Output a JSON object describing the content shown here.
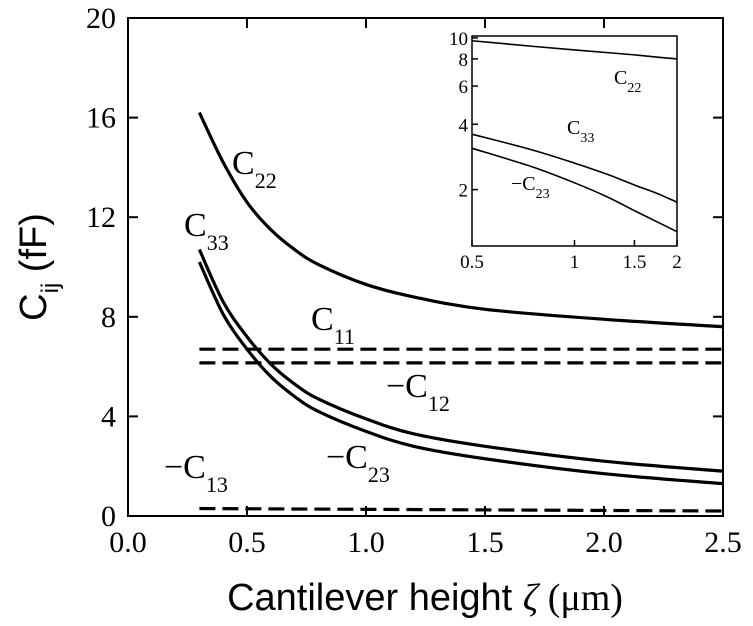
{
  "chart_data": [
    {
      "type": "line",
      "title": "",
      "xlabel_prefix": "Cantilever height ",
      "xlabel_symbol": "ζ",
      "xlabel_unit": " (μm)",
      "ylabel_main": "C",
      "ylabel_sub": "ij",
      "ylabel_unit": " (fF)",
      "xlim": [
        0.0,
        2.5
      ],
      "ylim": [
        0,
        20
      ],
      "xticks": [
        "0.0",
        "0.5",
        "1.0",
        "1.5",
        "2.0",
        "2.5"
      ],
      "yticks": [
        "0",
        "4",
        "8",
        "12",
        "16",
        "20"
      ],
      "grid": false,
      "series": [
        {
          "name": "C22",
          "label_main": "C",
          "label_sub": "22",
          "style": "solid",
          "x": [
            0.3,
            0.4,
            0.5,
            0.6,
            0.7,
            0.8,
            1.0,
            1.2,
            1.5,
            2.0,
            2.5
          ],
          "y": [
            16.2,
            14.2,
            12.6,
            11.5,
            10.7,
            10.1,
            9.3,
            8.8,
            8.3,
            7.9,
            7.6
          ]
        },
        {
          "name": "C33",
          "label_main": "C",
          "label_sub": "33",
          "style": "solid",
          "x": [
            0.3,
            0.4,
            0.5,
            0.6,
            0.7,
            0.8,
            1.0,
            1.2,
            1.5,
            2.0,
            2.5
          ],
          "y": [
            10.7,
            8.6,
            7.2,
            6.1,
            5.3,
            4.7,
            3.9,
            3.3,
            2.8,
            2.2,
            1.8
          ]
        },
        {
          "name": "-C23",
          "label_main": "−C",
          "label_sub": "23",
          "style": "solid",
          "x": [
            0.3,
            0.4,
            0.5,
            0.6,
            0.7,
            0.8,
            1.0,
            1.2,
            1.5,
            2.0,
            2.5
          ],
          "y": [
            10.2,
            8.1,
            6.7,
            5.6,
            4.8,
            4.2,
            3.4,
            2.8,
            2.3,
            1.7,
            1.3
          ]
        },
        {
          "name": "C11",
          "label_main": "C",
          "label_sub": "11",
          "style": "dashed",
          "x": [
            0.3,
            2.5
          ],
          "y": [
            6.7,
            6.7
          ]
        },
        {
          "name": "-C12",
          "label_main": "−C",
          "label_sub": "12",
          "style": "dashed",
          "x": [
            0.3,
            2.5
          ],
          "y": [
            6.15,
            6.15
          ]
        },
        {
          "name": "-C13",
          "label_main": "−C",
          "label_sub": "13",
          "style": "dashed",
          "x": [
            0.3,
            2.5
          ],
          "y": [
            0.3,
            0.2
          ]
        }
      ]
    },
    {
      "type": "line",
      "role": "inset",
      "xscale": "log",
      "yscale": "log",
      "xlim": [
        0.5,
        2
      ],
      "ylim": [
        1.1,
        10.2
      ],
      "xticks": [
        "0.5",
        "1",
        "1.5",
        "2"
      ],
      "yticks": [
        "2",
        "4",
        "6",
        "8",
        "10"
      ],
      "series": [
        {
          "name": "C22",
          "label_main": "C",
          "label_sub": "22",
          "x": [
            0.5,
            0.75,
            1.0,
            1.25,
            1.5,
            1.75,
            2.0
          ],
          "y": [
            9.7,
            9.15,
            8.8,
            8.55,
            8.35,
            8.15,
            8.0
          ]
        },
        {
          "name": "C33",
          "label_main": "C",
          "label_sub": "33",
          "x": [
            0.5,
            0.75,
            1.0,
            1.25,
            1.5,
            1.75,
            2.0
          ],
          "y": [
            3.6,
            3.05,
            2.65,
            2.35,
            2.1,
            1.92,
            1.75
          ]
        },
        {
          "name": "-C23",
          "label_main": "−C",
          "label_sub": "23",
          "x": [
            0.5,
            0.75,
            1.0,
            1.25,
            1.5,
            1.75,
            2.0
          ],
          "y": [
            3.1,
            2.55,
            2.15,
            1.85,
            1.6,
            1.42,
            1.28
          ]
        }
      ]
    }
  ]
}
